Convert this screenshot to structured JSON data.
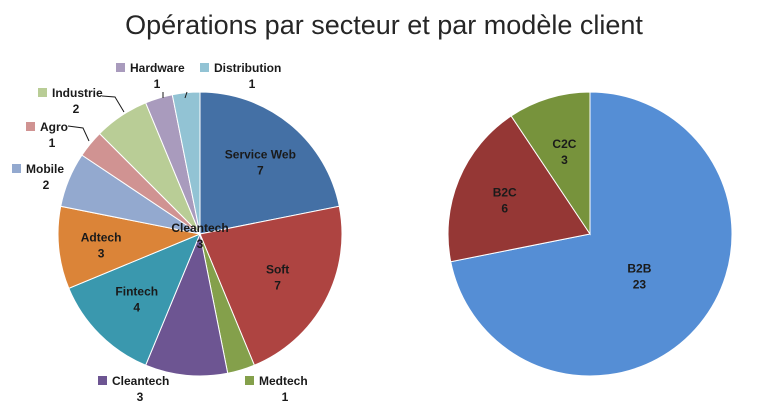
{
  "title": "Opérations par secteur et par modèle client",
  "chart_data": [
    {
      "type": "pie",
      "name": "secteur",
      "slices": [
        {
          "label": "Service Web",
          "value": 7,
          "color": "#4470A5"
        },
        {
          "label": "Soft",
          "value": 7,
          "color": "#AE4441"
        },
        {
          "label": "Medtech",
          "value": 1,
          "color": "#84A04B"
        },
        {
          "label": "Cleantech",
          "value": 3,
          "color": "#6D5592"
        },
        {
          "label": "Fintech",
          "value": 4,
          "color": "#3A98AE"
        },
        {
          "label": "Adtech",
          "value": 3,
          "color": "#DB8438"
        },
        {
          "label": "Mobile",
          "value": 2,
          "color": "#93A9CF"
        },
        {
          "label": "Agro",
          "value": 1,
          "color": "#D09392"
        },
        {
          "label": "Industrie",
          "value": 2,
          "color": "#B9CD96"
        },
        {
          "label": "Hardware",
          "value": 1,
          "color": "#A99BBD"
        },
        {
          "label": "Distribution",
          "value": 1,
          "color": "#92C3D4"
        }
      ]
    },
    {
      "type": "pie",
      "name": "modèle client",
      "slices": [
        {
          "label": "B2B",
          "value": 23,
          "color": "#558ED5"
        },
        {
          "label": "B2C",
          "value": 6,
          "color": "#953735"
        },
        {
          "label": "C2C",
          "value": 3,
          "color": "#77933C"
        }
      ]
    }
  ]
}
